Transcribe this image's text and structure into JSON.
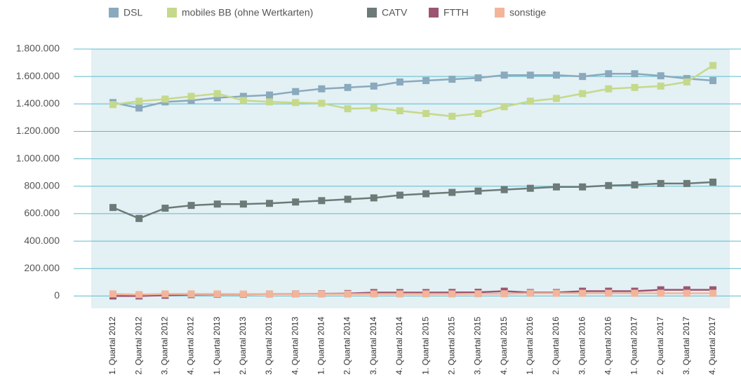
{
  "chart_data": {
    "type": "line",
    "categories": [
      "1. Quartal 2012",
      "2. Quartal 2012",
      "3. Quartal 2012",
      "4. Quartal 2012",
      "1. Quartal 2013",
      "2. Quartal 2013",
      "3. Quartal 2013",
      "4. Quartal 2013",
      "1. Quartal 2014",
      "2. Quartal 2014",
      "3. Quartal 2014",
      "4. Quartal 2014",
      "1. Quartal 2015",
      "2. Quartal 2015",
      "3. Quartal 2015",
      "4. Quartal 2015",
      "1. Quartal 2016",
      "2. Quartal 2016",
      "3. Quartal 2016",
      "4. Quartal 2016",
      "1. Quartal 2017",
      "2. Quartal 2017",
      "3. Quartal 2017",
      "4. Quartal 2017"
    ],
    "series": [
      {
        "name": "DSL",
        "color": "#8aa9bd",
        "values": [
          1410000,
          1370000,
          1415000,
          1425000,
          1445000,
          1455000,
          1465000,
          1490000,
          1510000,
          1520000,
          1530000,
          1560000,
          1570000,
          1580000,
          1590000,
          1610000,
          1610000,
          1610000,
          1600000,
          1620000,
          1620000,
          1605000,
          1585000,
          1570000
        ]
      },
      {
        "name": "mobiles BB (ohne Wertkarten)",
        "color": "#c5d98a",
        "values": [
          1395000,
          1420000,
          1435000,
          1455000,
          1475000,
          1425000,
          1415000,
          1410000,
          1405000,
          1365000,
          1370000,
          1350000,
          1330000,
          1310000,
          1330000,
          1380000,
          1420000,
          1440000,
          1475000,
          1510000,
          1520000,
          1530000,
          1560000,
          1680000
        ]
      },
      {
        "name": "CATV",
        "color": "#6c7a78",
        "values": [
          645000,
          565000,
          640000,
          660000,
          670000,
          670000,
          675000,
          685000,
          695000,
          705000,
          715000,
          735000,
          745000,
          755000,
          765000,
          775000,
          785000,
          795000,
          795000,
          805000,
          810000,
          820000,
          820000,
          830000
        ]
      },
      {
        "name": "FTTH",
        "color": "#9b5570",
        "values": [
          0,
          0,
          5000,
          10000,
          12000,
          12000,
          14000,
          15000,
          16000,
          18000,
          25000,
          25000,
          25000,
          26000,
          27000,
          35000,
          25000,
          25000,
          35000,
          35000,
          35000,
          45000,
          45000,
          45000
        ]
      },
      {
        "name": "sonstige",
        "color": "#f2b59a",
        "values": [
          15000,
          10000,
          15000,
          15000,
          15000,
          14000,
          14000,
          14000,
          14000,
          14000,
          15000,
          15000,
          15000,
          15000,
          16000,
          16000,
          20000,
          20000,
          20000,
          20000,
          20000,
          20000,
          20000,
          20000
        ]
      }
    ],
    "ylim": [
      -90000,
      1800000
    ],
    "yticks": [
      0,
      {
        "value": 200000,
        "label": "200.000"
      },
      {
        "value": 400000,
        "label": "400.000"
      },
      {
        "value": 600000,
        "label": "600.000"
      },
      {
        "value": 800000,
        "label": "800.000"
      },
      {
        "value": 1000000,
        "label": "1.000.000"
      },
      {
        "value": 1200000,
        "label": "1.200.000"
      },
      {
        "value": 1400000,
        "label": "1.400.000"
      },
      {
        "value": 1600000,
        "label": "1.600.000"
      },
      {
        "value": 1800000,
        "label": "1.800.000"
      }
    ],
    "grid": true,
    "plot_background": "#e3f0f4",
    "grid_color": "#5bbccc",
    "legend": "top"
  }
}
